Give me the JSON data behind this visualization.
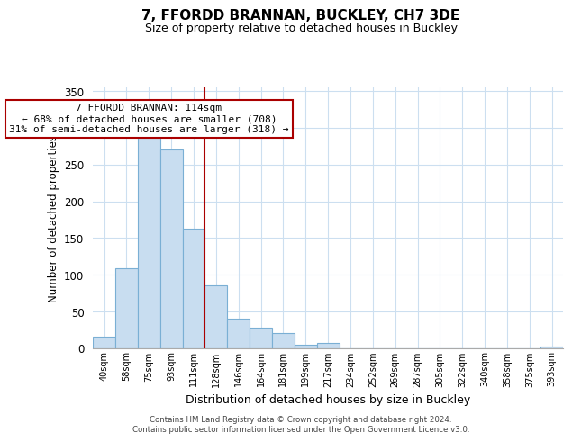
{
  "title": "7, FFORDD BRANNAN, BUCKLEY, CH7 3DE",
  "subtitle": "Size of property relative to detached houses in Buckley",
  "xlabel": "Distribution of detached houses by size in Buckley",
  "ylabel": "Number of detached properties",
  "bar_labels": [
    "40sqm",
    "58sqm",
    "75sqm",
    "93sqm",
    "111sqm",
    "128sqm",
    "146sqm",
    "164sqm",
    "181sqm",
    "199sqm",
    "217sqm",
    "234sqm",
    "252sqm",
    "269sqm",
    "287sqm",
    "305sqm",
    "322sqm",
    "340sqm",
    "358sqm",
    "375sqm",
    "393sqm"
  ],
  "bar_values": [
    16,
    109,
    291,
    270,
    163,
    86,
    41,
    28,
    21,
    5,
    7,
    0,
    0,
    0,
    0,
    0,
    0,
    0,
    0,
    0,
    2
  ],
  "bar_color": "#c8ddf0",
  "bar_edgecolor": "#7aafd4",
  "vline_x": 4.5,
  "vline_color": "#aa0000",
  "annotation_title": "7 FFORDD BRANNAN: 114sqm",
  "annotation_line1": "← 68% of detached houses are smaller (708)",
  "annotation_line2": "31% of semi-detached houses are larger (318) →",
  "annotation_box_color": "#ffffff",
  "annotation_box_edgecolor": "#aa0000",
  "ylim": [
    0,
    355
  ],
  "yticks": [
    0,
    50,
    100,
    150,
    200,
    250,
    300,
    350
  ],
  "footer_line1": "Contains HM Land Registry data © Crown copyright and database right 2024.",
  "footer_line2": "Contains public sector information licensed under the Open Government Licence v3.0.",
  "background_color": "#ffffff",
  "grid_color": "#ccdff0"
}
